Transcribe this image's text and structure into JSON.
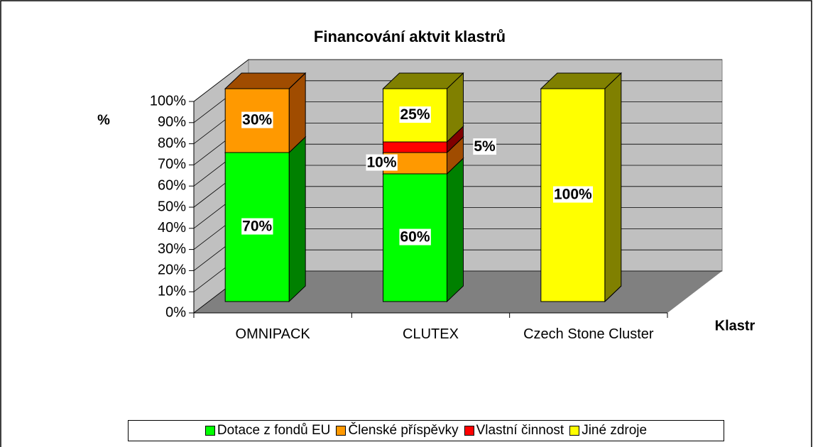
{
  "chart_data": {
    "type": "bar3d_stacked",
    "title": "Financování aktvit klastrů",
    "y_label": "%",
    "x_label": "Klastr",
    "categories": [
      "OMNIPACK",
      "CLUTEX",
      "Czech Stone Cluster"
    ],
    "series": [
      {
        "name": "Dotace z fondů EU",
        "color": "#00ff00",
        "side_color": "#008000",
        "values": [
          70,
          60,
          0
        ],
        "value_labels": [
          "70%",
          "60%",
          null
        ]
      },
      {
        "name": "Členské příspěvky",
        "color": "#ff9900",
        "side_color": "#a04c00",
        "values": [
          30,
          10,
          0
        ],
        "value_labels": [
          "30%",
          "10%",
          null
        ]
      },
      {
        "name": "Vlastní činnost",
        "color": "#ff0000",
        "side_color": "#800000",
        "values": [
          0,
          5,
          0
        ],
        "value_labels": [
          null,
          "5%",
          null
        ]
      },
      {
        "name": "Jiné zdroje",
        "color": "#ffff00",
        "side_color": "#808000",
        "values": [
          0,
          25,
          100
        ],
        "value_labels": [
          null,
          "25%",
          "100%"
        ]
      }
    ],
    "ylim": [
      0,
      100
    ],
    "yticks": [
      {
        "value": 0,
        "label": "0%"
      },
      {
        "value": 10,
        "label": "10%"
      },
      {
        "value": 20,
        "label": "20%"
      },
      {
        "value": 30,
        "label": "30%"
      },
      {
        "value": 40,
        "label": "40%"
      },
      {
        "value": 50,
        "label": "50%"
      },
      {
        "value": 60,
        "label": "60%"
      },
      {
        "value": 70,
        "label": "70%"
      },
      {
        "value": 80,
        "label": "80%"
      },
      {
        "value": 90,
        "label": "90%"
      },
      {
        "value": 100,
        "label": "100%"
      }
    ],
    "grid": true
  }
}
